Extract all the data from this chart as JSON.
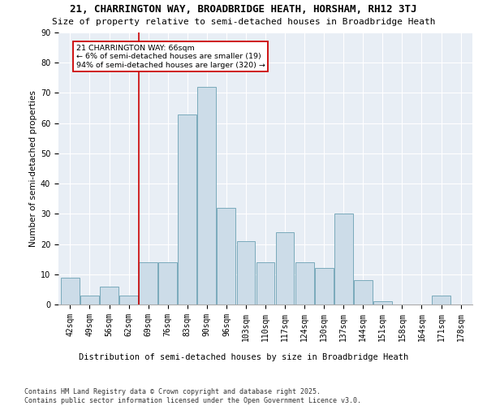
{
  "title": "21, CHARRINGTON WAY, BROADBRIDGE HEATH, HORSHAM, RH12 3TJ",
  "subtitle": "Size of property relative to semi-detached houses in Broadbridge Heath",
  "xlabel": "Distribution of semi-detached houses by size in Broadbridge Heath",
  "ylabel": "Number of semi-detached properties",
  "footer": "Contains HM Land Registry data © Crown copyright and database right 2025.\nContains public sector information licensed under the Open Government Licence v3.0.",
  "categories": [
    "42sqm",
    "49sqm",
    "56sqm",
    "62sqm",
    "69sqm",
    "76sqm",
    "83sqm",
    "90sqm",
    "96sqm",
    "103sqm",
    "110sqm",
    "117sqm",
    "124sqm",
    "130sqm",
    "137sqm",
    "144sqm",
    "151sqm",
    "158sqm",
    "164sqm",
    "171sqm",
    "178sqm"
  ],
  "values": [
    9,
    3,
    6,
    3,
    14,
    14,
    63,
    72,
    32,
    21,
    14,
    24,
    14,
    12,
    30,
    8,
    1,
    0,
    0,
    3,
    0
  ],
  "bar_color": "#ccdce8",
  "bar_edge_color": "#7aaabb",
  "background_color": "#e8eef5",
  "vline_index": 3.5,
  "vline_color": "#cc0000",
  "vline_label": "21 CHARRINGTON WAY: 66sqm",
  "annotation_smaller": "← 6% of semi-detached houses are smaller (19)",
  "annotation_larger": "94% of semi-detached houses are larger (320) →",
  "annotation_box_color": "#cc0000",
  "ylim": [
    0,
    90
  ],
  "yticks": [
    0,
    10,
    20,
    30,
    40,
    50,
    60,
    70,
    80,
    90
  ],
  "title_fontsize": 9,
  "subtitle_fontsize": 8,
  "axis_label_fontsize": 7.5,
  "tick_fontsize": 7,
  "footer_fontsize": 6
}
